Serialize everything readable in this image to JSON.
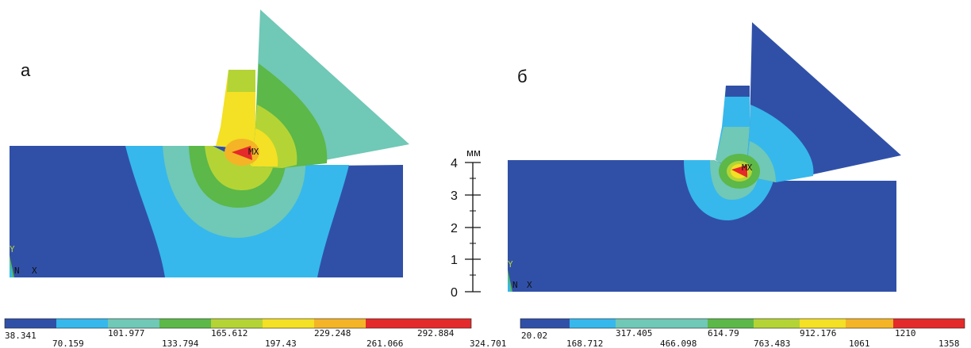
{
  "panels": [
    {
      "label": "а",
      "max_marker": "MX",
      "triad": {
        "y": "Y",
        "n": "N",
        "x": "X"
      },
      "legend": {
        "top_values": [
          "38.341",
          "101.977",
          "165.612",
          "229.248",
          "292.884"
        ],
        "bottom_values": [
          "70.159",
          "133.794",
          "197.43",
          "261.066",
          "324.701"
        ],
        "colors": [
          "#3050a8",
          "#36b8ec",
          "#70c8b6",
          "#5cb848",
          "#b4d436",
          "#f4e024",
          "#f4b426",
          "#e42a2a"
        ]
      }
    },
    {
      "label": "б",
      "max_marker": "MX",
      "triad": {
        "y": "Y",
        "n": "N",
        "x": "X"
      },
      "legend": {
        "top_values": [
          "20.02",
          "317.405",
          "614.79",
          "912.176",
          "1210"
        ],
        "bottom_values": [
          "168.712",
          "466.098",
          "763.483",
          "1061",
          "1358"
        ],
        "colors": [
          "#3050a8",
          "#36b8ec",
          "#70c8b6",
          "#5cb848",
          "#b4d436",
          "#f4e024",
          "#f4b426",
          "#e42a2a"
        ]
      }
    }
  ],
  "scale_bar": {
    "unit": "мм",
    "ticks": [
      "4",
      "3",
      "2",
      "1",
      "0"
    ]
  }
}
